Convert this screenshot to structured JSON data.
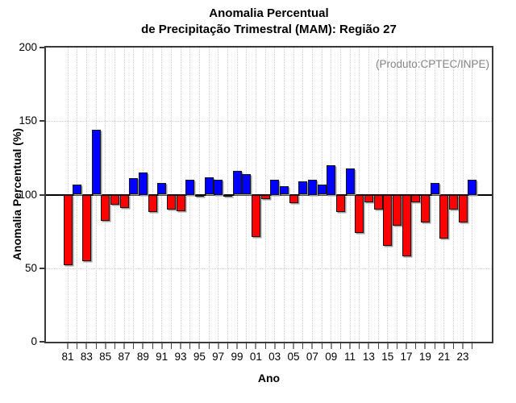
{
  "title": {
    "line1": "Anomalia Percentual",
    "line2": "de Precipitação Trimestral (MAM): Região 27"
  },
  "annotation": {
    "text": "(Produto:CPTEC/INPE)",
    "color": "#848484"
  },
  "axes": {
    "y": {
      "label": "Anomalia Percentual (%)",
      "tick_labels": [
        "0",
        "50",
        "100",
        "150",
        "200"
      ],
      "range": [
        0,
        200
      ]
    },
    "x": {
      "label": "Ano",
      "tick_labels": [
        "81",
        "83",
        "85",
        "87",
        "89",
        "91",
        "93",
        "95",
        "97",
        "99",
        "01",
        "03",
        "05",
        "07",
        "09",
        "11",
        "13",
        "15",
        "17",
        "19",
        "21",
        "23"
      ]
    }
  },
  "chart_data": {
    "type": "bar",
    "title": "Anomalia Percentual de Precipitação Trimestral (MAM): Região 27",
    "xlabel": "Ano",
    "ylabel": "Anomalia Percentual (%)",
    "ylim": [
      0,
      200
    ],
    "yticks": [
      0,
      50,
      100,
      150,
      200
    ],
    "baseline": 100,
    "grid_y_dotted": [
      50,
      150
    ],
    "grid_x_dotted": "every-year",
    "legend": "none",
    "bar_color_above_baseline": "#0000ff",
    "bar_color_below_baseline": "#ff0000",
    "categories": [
      "81",
      "82",
      "83",
      "84",
      "85",
      "86",
      "87",
      "88",
      "89",
      "90",
      "91",
      "92",
      "93",
      "94",
      "95",
      "96",
      "97",
      "98",
      "99",
      "00",
      "01",
      "02",
      "03",
      "04",
      "05",
      "06",
      "07",
      "08",
      "09",
      "10",
      "11",
      "12",
      "13",
      "14",
      "15",
      "16",
      "17",
      "18",
      "19",
      "20",
      "21",
      "22",
      "23",
      "24"
    ],
    "values": [
      52,
      107,
      55,
      144,
      82,
      93,
      91,
      111,
      115,
      88,
      108,
      90,
      89,
      110,
      99,
      112,
      110,
      99,
      116,
      114,
      71,
      97,
      110,
      106,
      94,
      109,
      110,
      107,
      120,
      88,
      118,
      74,
      95,
      90,
      65,
      79,
      58,
      95,
      81,
      108,
      70,
      90,
      81,
      110
    ]
  }
}
